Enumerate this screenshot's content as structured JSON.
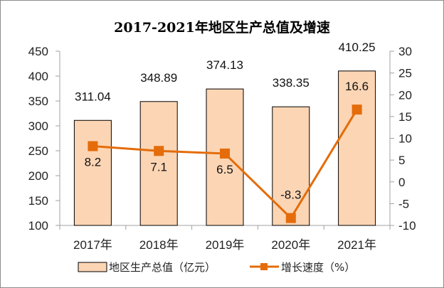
{
  "chart_data": {
    "type": "bar+line",
    "title": "2017-2021年地区生产总值及增速",
    "categories": [
      "2017年",
      "2018年",
      "2019年",
      "2020年",
      "2021年"
    ],
    "series": [
      {
        "name": "地区生产总值（亿元）",
        "type": "bar",
        "axis": "left",
        "values": [
          311.04,
          348.89,
          374.13,
          338.35,
          410.25
        ],
        "labels": [
          "311.04",
          "348.89",
          "374.13",
          "338.35",
          "410.25"
        ]
      },
      {
        "name": "增长速度（%）",
        "type": "line",
        "axis": "right",
        "values": [
          8.2,
          7.1,
          6.5,
          -8.3,
          16.6
        ],
        "labels": [
          "8.2",
          "7.1",
          "6.5",
          "-8.3",
          "16.6"
        ]
      }
    ],
    "y_left": {
      "range": [
        100,
        450
      ],
      "ticks": [
        "100",
        "150",
        "200",
        "250",
        "300",
        "350",
        "400",
        "450"
      ]
    },
    "y_right": {
      "range": [
        -10,
        30
      ],
      "ticks": [
        "-10",
        "-5",
        "0",
        "5",
        "10",
        "15",
        "20",
        "25",
        "30"
      ]
    },
    "grid": false,
    "legend_position": "bottom",
    "colors": {
      "bar_fill": "#fcd5b4",
      "bar_stroke": "#000000",
      "line": "#e46c0a"
    }
  }
}
